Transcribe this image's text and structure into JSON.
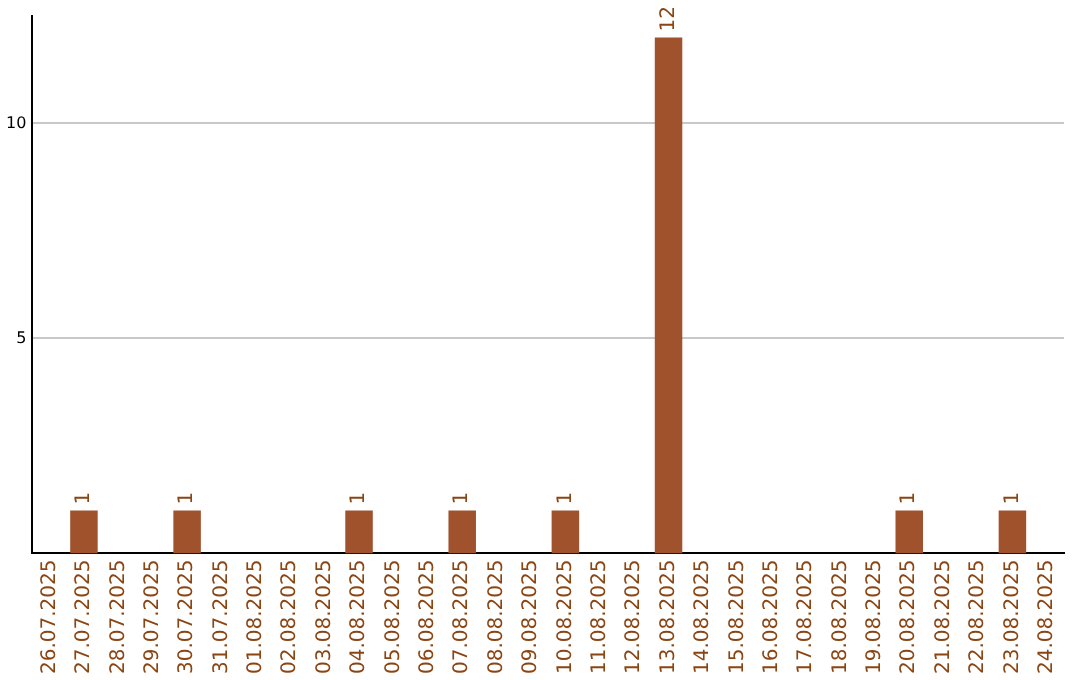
{
  "chart_data": {
    "type": "bar",
    "categories": [
      "26.07.2025",
      "27.07.2025",
      "28.07.2025",
      "29.07.2025",
      "30.07.2025",
      "31.07.2025",
      "01.08.2025",
      "02.08.2025",
      "03.08.2025",
      "04.08.2025",
      "05.08.2025",
      "06.08.2025",
      "07.08.2025",
      "08.08.2025",
      "09.08.2025",
      "10.08.2025",
      "11.08.2025",
      "12.08.2025",
      "13.08.2025",
      "14.08.2025",
      "15.08.2025",
      "16.08.2025",
      "17.08.2025",
      "18.08.2025",
      "19.08.2025",
      "20.08.2025",
      "21.08.2025",
      "22.08.2025",
      "23.08.2025",
      "24.08.2025"
    ],
    "values": [
      0,
      1,
      0,
      0,
      1,
      0,
      0,
      0,
      0,
      1,
      0,
      0,
      1,
      0,
      0,
      1,
      0,
      0,
      12,
      0,
      0,
      0,
      0,
      0,
      0,
      1,
      0,
      0,
      1,
      0
    ],
    "value_labels": [
      null,
      "1",
      null,
      null,
      "1",
      null,
      null,
      null,
      null,
      "1",
      null,
      null,
      "1",
      null,
      null,
      "1",
      null,
      null,
      "12",
      null,
      null,
      null,
      null,
      null,
      null,
      "1",
      null,
      null,
      "1",
      null
    ],
    "color": "#a0522d",
    "ylim": [
      0,
      12.5
    ],
    "yticks": [
      5,
      10
    ],
    "grid": "y",
    "legend": false
  }
}
